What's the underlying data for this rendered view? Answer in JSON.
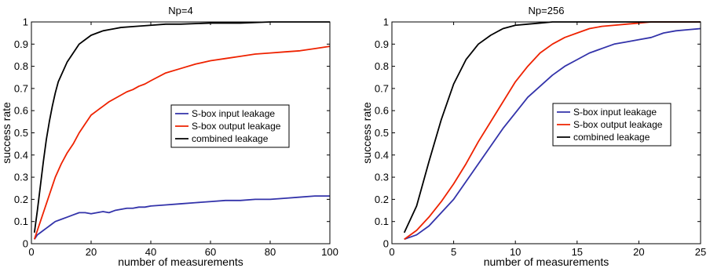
{
  "chart_data": [
    {
      "type": "line",
      "title": "Np=4",
      "xlabel": "number of measurements",
      "ylabel": "success rate",
      "xlim": [
        0,
        100
      ],
      "ylim": [
        0,
        1
      ],
      "xticks": [
        "0",
        "20",
        "40",
        "60",
        "80",
        "100"
      ],
      "yticks": [
        "0",
        "0.1",
        "0.2",
        "0.3",
        "0.4",
        "0.5",
        "0.6",
        "0.7",
        "0.8",
        "0.9",
        "1"
      ],
      "legend_position": "center-right",
      "series": [
        {
          "name": "S-box input leakage",
          "color": "#3333aa",
          "x": [
            1,
            2,
            3,
            4,
            5,
            6,
            7,
            8,
            10,
            12,
            14,
            16,
            18,
            20,
            22,
            24,
            26,
            28,
            30,
            32,
            34,
            36,
            38,
            40,
            45,
            50,
            55,
            60,
            65,
            70,
            75,
            80,
            85,
            90,
            95,
            100
          ],
          "y": [
            0.02,
            0.04,
            0.05,
            0.06,
            0.07,
            0.08,
            0.09,
            0.1,
            0.11,
            0.12,
            0.13,
            0.14,
            0.14,
            0.135,
            0.14,
            0.145,
            0.14,
            0.15,
            0.155,
            0.16,
            0.16,
            0.165,
            0.165,
            0.17,
            0.175,
            0.18,
            0.185,
            0.19,
            0.195,
            0.195,
            0.2,
            0.2,
            0.205,
            0.21,
            0.215,
            0.215
          ]
        },
        {
          "name": "S-box output leakage",
          "color": "#ee2200",
          "x": [
            1,
            2,
            3,
            4,
            5,
            6,
            7,
            8,
            10,
            12,
            14,
            16,
            18,
            20,
            22,
            24,
            26,
            28,
            30,
            32,
            34,
            36,
            38,
            40,
            45,
            50,
            55,
            60,
            65,
            70,
            75,
            80,
            85,
            90,
            95,
            100
          ],
          "y": [
            0.02,
            0.06,
            0.1,
            0.14,
            0.18,
            0.22,
            0.26,
            0.3,
            0.36,
            0.41,
            0.45,
            0.5,
            0.54,
            0.58,
            0.6,
            0.62,
            0.64,
            0.655,
            0.67,
            0.685,
            0.695,
            0.71,
            0.72,
            0.735,
            0.77,
            0.79,
            0.81,
            0.825,
            0.835,
            0.845,
            0.855,
            0.86,
            0.865,
            0.87,
            0.88,
            0.89
          ]
        },
        {
          "name": "combined leakage",
          "color": "#000000",
          "x": [
            1,
            2,
            3,
            4,
            5,
            6,
            7,
            8,
            9,
            10,
            12,
            14,
            16,
            18,
            20,
            22,
            24,
            26,
            28,
            30,
            35,
            40,
            45,
            50,
            60,
            70,
            80,
            90,
            100
          ],
          "y": [
            0.05,
            0.15,
            0.26,
            0.37,
            0.47,
            0.55,
            0.62,
            0.68,
            0.73,
            0.76,
            0.82,
            0.86,
            0.9,
            0.92,
            0.94,
            0.95,
            0.96,
            0.965,
            0.97,
            0.975,
            0.98,
            0.985,
            0.99,
            0.99,
            0.995,
            0.995,
            1.0,
            1.0,
            1.0
          ]
        }
      ]
    },
    {
      "type": "line",
      "title": "Np=256",
      "xlabel": "number of measurements",
      "ylabel": "success rate",
      "xlim": [
        0,
        25
      ],
      "ylim": [
        0,
        1
      ],
      "xticks": [
        "0",
        "5",
        "10",
        "15",
        "20",
        "25"
      ],
      "yticks": [
        "0",
        "0.1",
        "0.2",
        "0.3",
        "0.4",
        "0.5",
        "0.6",
        "0.7",
        "0.8",
        "0.9",
        "1"
      ],
      "legend_position": "center-right",
      "series": [
        {
          "name": "S-box input leakage",
          "color": "#3333aa",
          "x": [
            1,
            2,
            3,
            4,
            5,
            6,
            7,
            8,
            9,
            10,
            11,
            12,
            13,
            14,
            15,
            16,
            17,
            18,
            19,
            20,
            21,
            22,
            23,
            24,
            25
          ],
          "y": [
            0.02,
            0.04,
            0.08,
            0.14,
            0.2,
            0.28,
            0.36,
            0.44,
            0.52,
            0.59,
            0.66,
            0.71,
            0.76,
            0.8,
            0.83,
            0.86,
            0.88,
            0.9,
            0.91,
            0.92,
            0.93,
            0.95,
            0.96,
            0.965,
            0.97
          ]
        },
        {
          "name": "S-box output leakage",
          "color": "#ee2200",
          "x": [
            1,
            2,
            3,
            4,
            5,
            6,
            7,
            8,
            9,
            10,
            11,
            12,
            13,
            14,
            15,
            16,
            17,
            18,
            19,
            20,
            21,
            22,
            23,
            24,
            25
          ],
          "y": [
            0.02,
            0.06,
            0.12,
            0.19,
            0.27,
            0.36,
            0.46,
            0.55,
            0.64,
            0.73,
            0.8,
            0.86,
            0.9,
            0.93,
            0.95,
            0.97,
            0.98,
            0.985,
            0.99,
            0.995,
            1.0,
            1.0,
            1.0,
            1.0,
            1.0
          ]
        },
        {
          "name": "combined leakage",
          "color": "#000000",
          "x": [
            1,
            2,
            3,
            4,
            5,
            6,
            7,
            8,
            9,
            10,
            11,
            12,
            13,
            14,
            15,
            16,
            17,
            18,
            19,
            20,
            21,
            22,
            23,
            24,
            25
          ],
          "y": [
            0.05,
            0.17,
            0.37,
            0.56,
            0.72,
            0.83,
            0.9,
            0.94,
            0.97,
            0.985,
            0.99,
            0.995,
            1.0,
            1.0,
            1.0,
            1.0,
            1.0,
            1.0,
            1.0,
            1.0,
            1.0,
            1.0,
            1.0,
            1.0,
            1.0
          ]
        }
      ]
    }
  ]
}
